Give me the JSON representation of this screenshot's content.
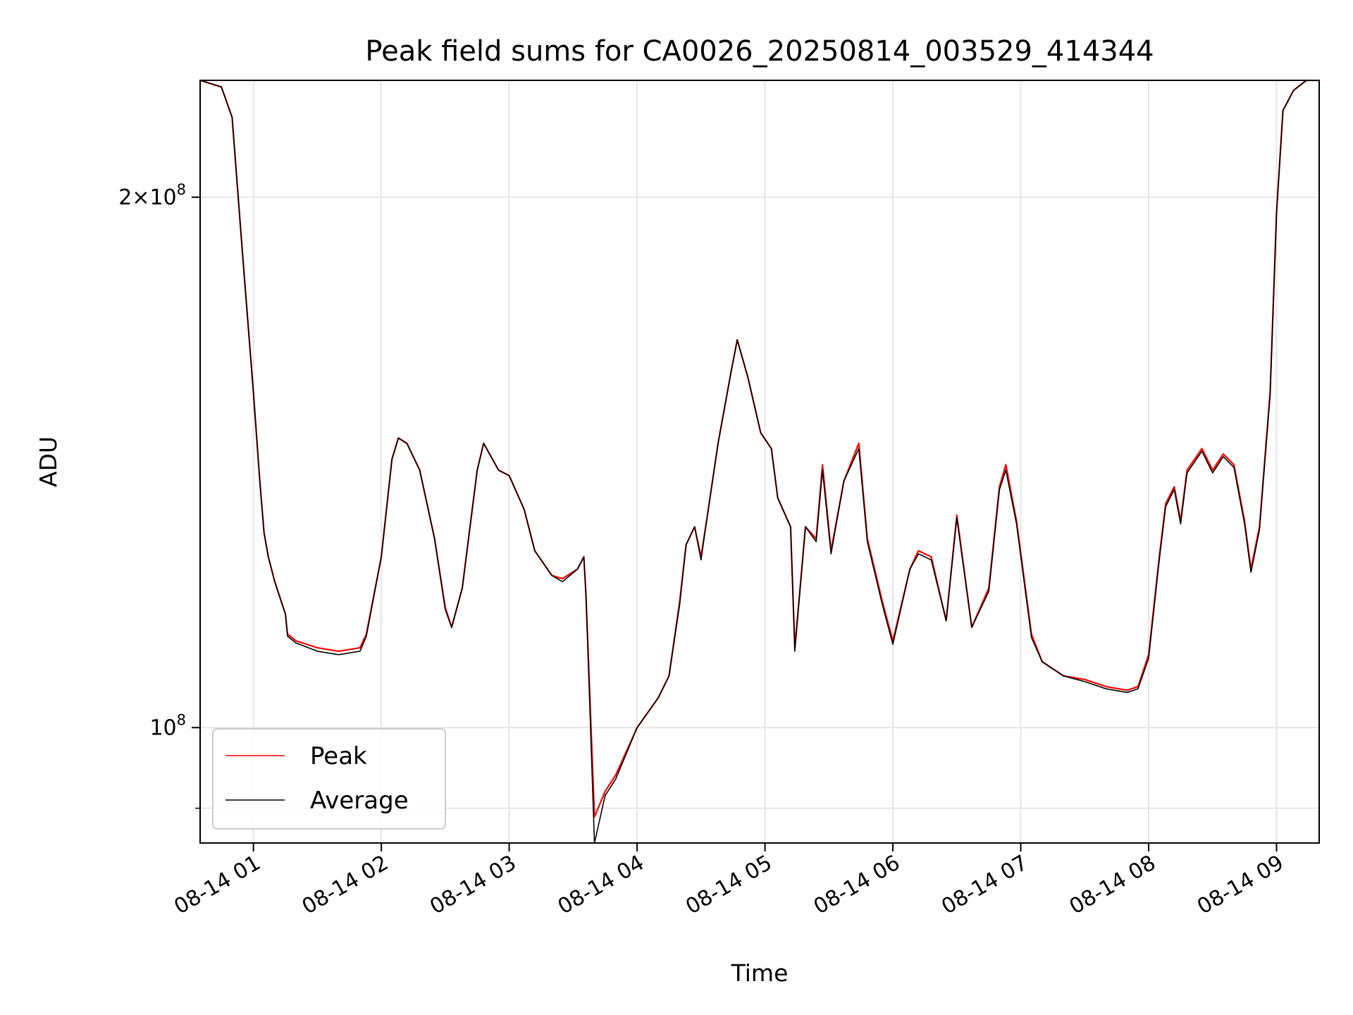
{
  "chart_data": {
    "type": "line",
    "title": "Peak field sums for CA0026_20250814_003529_414344",
    "xlabel": "Time",
    "ylabel": "ADU",
    "y_scale": "log",
    "x_unit": "date-time (2025-08-14)",
    "xlim": [
      "2025-08-14 00:35",
      "2025-08-14 09:20"
    ],
    "ylim": [
      86000000,
      233000000
    ],
    "grid": true,
    "legend_position": "lower-left",
    "x_ticks": [
      {
        "t": "2025-08-14 01:00",
        "label": "08-14 01"
      },
      {
        "t": "2025-08-14 02:00",
        "label": "08-14 02"
      },
      {
        "t": "2025-08-14 03:00",
        "label": "08-14 03"
      },
      {
        "t": "2025-08-14 04:00",
        "label": "08-14 04"
      },
      {
        "t": "2025-08-14 05:00",
        "label": "08-14 05"
      },
      {
        "t": "2025-08-14 06:00",
        "label": "08-14 06"
      },
      {
        "t": "2025-08-14 07:00",
        "label": "08-14 07"
      },
      {
        "t": "2025-08-14 08:00",
        "label": "08-14 08"
      },
      {
        "t": "2025-08-14 09:00",
        "label": "08-14 09"
      }
    ],
    "y_ticks_major": [
      {
        "value": 100000000,
        "base": "10",
        "exp": "8"
      },
      {
        "value": 200000000,
        "mantissa": "2",
        "base": "10",
        "exp": "8"
      }
    ],
    "y_ticks_minor": [
      90000000
    ],
    "series": [
      {
        "name": "Peak",
        "color": "#ff0000",
        "x": [
          "2025-08-14 00:35",
          "2025-08-14 00:45",
          "2025-08-14 00:50",
          "2025-08-14 00:55",
          "2025-08-14 01:00",
          "2025-08-14 01:03",
          "2025-08-14 01:05",
          "2025-08-14 01:07",
          "2025-08-14 01:10",
          "2025-08-14 01:13",
          "2025-08-14 01:15",
          "2025-08-14 01:16",
          "2025-08-14 01:20",
          "2025-08-14 01:30",
          "2025-08-14 01:40",
          "2025-08-14 01:50",
          "2025-08-14 01:53",
          "2025-08-14 02:00",
          "2025-08-14 02:05",
          "2025-08-14 02:08",
          "2025-08-14 02:12",
          "2025-08-14 02:18",
          "2025-08-14 02:25",
          "2025-08-14 02:30",
          "2025-08-14 02:33",
          "2025-08-14 02:38",
          "2025-08-14 02:45",
          "2025-08-14 02:48",
          "2025-08-14 02:55",
          "2025-08-14 03:00",
          "2025-08-14 03:07",
          "2025-08-14 03:12",
          "2025-08-14 03:20",
          "2025-08-14 03:25",
          "2025-08-14 03:32",
          "2025-08-14 03:35",
          "2025-08-14 03:36",
          "2025-08-14 03:40",
          "2025-08-14 03:45",
          "2025-08-14 03:50",
          "2025-08-14 04:00",
          "2025-08-14 04:10",
          "2025-08-14 04:15",
          "2025-08-14 04:20",
          "2025-08-14 04:23",
          "2025-08-14 04:27",
          "2025-08-14 04:30",
          "2025-08-14 04:33",
          "2025-08-14 04:38",
          "2025-08-14 04:44",
          "2025-08-14 04:47",
          "2025-08-14 04:52",
          "2025-08-14 04:58",
          "2025-08-14 05:03",
          "2025-08-14 05:06",
          "2025-08-14 05:12",
          "2025-08-14 05:14",
          "2025-08-14 05:19",
          "2025-08-14 05:24",
          "2025-08-14 05:27",
          "2025-08-14 05:31",
          "2025-08-14 05:37",
          "2025-08-14 05:44",
          "2025-08-14 05:48",
          "2025-08-14 05:55",
          "2025-08-14 06:00",
          "2025-08-14 06:08",
          "2025-08-14 06:12",
          "2025-08-14 06:18",
          "2025-08-14 06:25",
          "2025-08-14 06:30",
          "2025-08-14 06:37",
          "2025-08-14 06:45",
          "2025-08-14 06:50",
          "2025-08-14 06:53",
          "2025-08-14 06:58",
          "2025-08-14 07:05",
          "2025-08-14 07:10",
          "2025-08-14 07:20",
          "2025-08-14 07:30",
          "2025-08-14 07:40",
          "2025-08-14 07:50",
          "2025-08-14 07:55",
          "2025-08-14 08:00",
          "2025-08-14 08:05",
          "2025-08-14 08:08",
          "2025-08-14 08:12",
          "2025-08-14 08:15",
          "2025-08-14 08:18",
          "2025-08-14 08:25",
          "2025-08-14 08:30",
          "2025-08-14 08:35",
          "2025-08-14 08:40",
          "2025-08-14 08:45",
          "2025-08-14 08:48",
          "2025-08-14 08:52",
          "2025-08-14 08:57",
          "2025-08-14 09:00",
          "2025-08-14 09:03",
          "2025-08-14 09:08",
          "2025-08-14 09:14",
          "2025-08-14 09:20"
        ],
        "values": [
          233000000,
          231000000,
          222000000,
          185000000,
          155000000,
          138000000,
          129000000,
          125000000,
          121000000,
          118000000,
          116000000,
          113000000,
          112000000,
          111000000,
          110500000,
          111000000,
          113000000,
          125000000,
          142000000,
          146000000,
          145000000,
          140000000,
          128000000,
          117000000,
          114000000,
          120000000,
          140000000,
          145000000,
          140000000,
          139000000,
          133000000,
          126000000,
          122000000,
          121500000,
          123000000,
          125000000,
          119000000,
          89000000,
          92000000,
          94000000,
          100000000,
          104000000,
          107000000,
          118000000,
          127000000,
          130000000,
          125000000,
          132000000,
          145000000,
          159000000,
          166000000,
          158000000,
          147000000,
          144000000,
          135000000,
          130000000,
          111000000,
          130000000,
          128000000,
          141000000,
          126000000,
          138000000,
          145000000,
          128000000,
          118000000,
          112000000,
          123000000,
          126000000,
          125000000,
          115000000,
          132000000,
          114000000,
          120000000,
          137000000,
          141000000,
          131000000,
          113000000,
          109000000,
          107000000,
          106500000,
          105500000,
          105000000,
          105500000,
          110000000,
          125000000,
          134000000,
          137000000,
          131000000,
          140000000,
          144000000,
          140000000,
          143000000,
          141000000,
          131000000,
          123000000,
          130000000,
          155000000,
          196000000,
          224000000,
          230000000,
          233000000,
          233000000
        ]
      },
      {
        "name": "Average",
        "color": "#000000",
        "x": [
          "2025-08-14 00:35",
          "2025-08-14 00:45",
          "2025-08-14 00:50",
          "2025-08-14 00:55",
          "2025-08-14 01:00",
          "2025-08-14 01:03",
          "2025-08-14 01:05",
          "2025-08-14 01:07",
          "2025-08-14 01:10",
          "2025-08-14 01:13",
          "2025-08-14 01:15",
          "2025-08-14 01:16",
          "2025-08-14 01:20",
          "2025-08-14 01:30",
          "2025-08-14 01:40",
          "2025-08-14 01:50",
          "2025-08-14 01:53",
          "2025-08-14 02:00",
          "2025-08-14 02:05",
          "2025-08-14 02:08",
          "2025-08-14 02:12",
          "2025-08-14 02:18",
          "2025-08-14 02:25",
          "2025-08-14 02:30",
          "2025-08-14 02:33",
          "2025-08-14 02:38",
          "2025-08-14 02:45",
          "2025-08-14 02:48",
          "2025-08-14 02:55",
          "2025-08-14 03:00",
          "2025-08-14 03:07",
          "2025-08-14 03:12",
          "2025-08-14 03:20",
          "2025-08-14 03:25",
          "2025-08-14 03:32",
          "2025-08-14 03:35",
          "2025-08-14 03:36",
          "2025-08-14 03:40",
          "2025-08-14 03:45",
          "2025-08-14 03:50",
          "2025-08-14 04:00",
          "2025-08-14 04:10",
          "2025-08-14 04:15",
          "2025-08-14 04:20",
          "2025-08-14 04:23",
          "2025-08-14 04:27",
          "2025-08-14 04:30",
          "2025-08-14 04:33",
          "2025-08-14 04:38",
          "2025-08-14 04:44",
          "2025-08-14 04:47",
          "2025-08-14 04:52",
          "2025-08-14 04:58",
          "2025-08-14 05:03",
          "2025-08-14 05:06",
          "2025-08-14 05:12",
          "2025-08-14 05:14",
          "2025-08-14 05:19",
          "2025-08-14 05:24",
          "2025-08-14 05:27",
          "2025-08-14 05:31",
          "2025-08-14 05:37",
          "2025-08-14 05:44",
          "2025-08-14 05:48",
          "2025-08-14 05:55",
          "2025-08-14 06:00",
          "2025-08-14 06:08",
          "2025-08-14 06:12",
          "2025-08-14 06:18",
          "2025-08-14 06:25",
          "2025-08-14 06:30",
          "2025-08-14 06:37",
          "2025-08-14 06:45",
          "2025-08-14 06:50",
          "2025-08-14 06:53",
          "2025-08-14 06:58",
          "2025-08-14 07:05",
          "2025-08-14 07:10",
          "2025-08-14 07:20",
          "2025-08-14 07:30",
          "2025-08-14 07:40",
          "2025-08-14 07:50",
          "2025-08-14 07:55",
          "2025-08-14 08:00",
          "2025-08-14 08:05",
          "2025-08-14 08:08",
          "2025-08-14 08:12",
          "2025-08-14 08:15",
          "2025-08-14 08:18",
          "2025-08-14 08:25",
          "2025-08-14 08:30",
          "2025-08-14 08:35",
          "2025-08-14 08:40",
          "2025-08-14 08:45",
          "2025-08-14 08:48",
          "2025-08-14 08:52",
          "2025-08-14 08:57",
          "2025-08-14 09:00",
          "2025-08-14 09:03",
          "2025-08-14 09:08",
          "2025-08-14 09:14",
          "2025-08-14 09:20"
        ],
        "values": [
          233000000,
          231000000,
          222000000,
          185000000,
          155000000,
          138000000,
          129000000,
          125000000,
          121000000,
          118000000,
          116000000,
          112700000,
          111700000,
          110500000,
          110000000,
          110500000,
          112700000,
          125000000,
          142000000,
          146000000,
          145000000,
          140000000,
          128000000,
          116700000,
          114000000,
          120000000,
          140000000,
          145000000,
          140000000,
          139000000,
          133000000,
          126000000,
          122000000,
          121000000,
          123000000,
          125000000,
          119000000,
          86000000,
          91500000,
          93500000,
          100000000,
          104000000,
          107000000,
          117500000,
          127000000,
          130000000,
          124500000,
          132000000,
          145000000,
          159000000,
          166000000,
          158000000,
          147000000,
          144000000,
          135000000,
          130000000,
          110500000,
          130000000,
          127500000,
          140000000,
          125500000,
          138000000,
          144000000,
          127500000,
          117500000,
          111500000,
          123000000,
          125500000,
          124500000,
          115000000,
          131500000,
          114000000,
          119500000,
          136500000,
          140000000,
          130500000,
          112500000,
          109000000,
          107000000,
          106200000,
          105200000,
          104700000,
          105200000,
          109500000,
          124500000,
          133500000,
          136500000,
          130500000,
          139500000,
          143500000,
          139500000,
          142500000,
          140500000,
          130500000,
          122500000,
          129500000,
          154500000,
          196000000,
          224000000,
          230000000,
          233000000,
          233000000
        ]
      }
    ]
  }
}
